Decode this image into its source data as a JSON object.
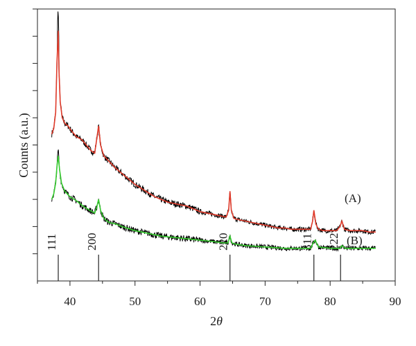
{
  "chart_data": {
    "type": "line",
    "xlabel_main": "2",
    "xlabel_theta": "θ",
    "ylabel": "Counts (a.u.)",
    "xlim": [
      35,
      90
    ],
    "x_ticks": [
      40,
      50,
      60,
      70,
      80,
      90
    ],
    "ylim": [
      0,
      100
    ],
    "y_ticks": [
      10,
      20,
      30,
      40,
      50,
      60,
      70,
      80,
      90,
      100
    ],
    "y_ticks_labeled": false,
    "colors": {
      "raw": "#000000",
      "fit_A": "#e03a2a",
      "fit_B": "#35cc2e"
    },
    "series": [
      {
        "name": "(A)",
        "x": [
          37.2,
          37.5,
          37.8,
          38.0,
          38.2,
          38.3,
          38.5,
          38.8,
          39.2,
          39.7,
          40.3,
          41.0,
          41.8,
          42.5,
          43.2,
          43.8,
          44.1,
          44.4,
          44.7,
          45.2,
          46.0,
          47.0,
          48.0,
          49.0,
          50.0,
          51.0,
          52.0,
          53.0,
          54.0,
          55.0,
          56.0,
          57.0,
          58.0,
          59.0,
          60.0,
          61.0,
          62.0,
          63.0,
          64.0,
          64.4,
          64.6,
          64.8,
          65.2,
          66.0,
          67.0,
          68.0,
          69.0,
          70.0,
          71.0,
          72.0,
          73.0,
          74.0,
          75.0,
          76.0,
          77.0,
          77.3,
          77.5,
          77.8,
          78.2,
          79.0,
          80.0,
          81.0,
          81.5,
          81.8,
          82.2,
          83.0,
          84.0,
          85.0,
          86.0,
          87.0
        ],
        "y": [
          54,
          56,
          62,
          80,
          92,
          78,
          66,
          60,
          58,
          57,
          55,
          53,
          52,
          50,
          48,
          47,
          52,
          57,
          50,
          46,
          44,
          41.5,
          39.5,
          37.5,
          35.5,
          34,
          32.5,
          31,
          30,
          29,
          28.5,
          28,
          27.5,
          26.5,
          25.5,
          25,
          24.5,
          24,
          23.5,
          26,
          33,
          26,
          23,
          22.5,
          22,
          21.5,
          21,
          20.5,
          20,
          19.5,
          19.5,
          19,
          19,
          19,
          19,
          22,
          26,
          21,
          19,
          18.5,
          18.5,
          18.5,
          20,
          22,
          19,
          18.5,
          18.5,
          18.5,
          18,
          18
        ]
      },
      {
        "name": "(B)",
        "x": [
          37.2,
          37.5,
          37.8,
          38.0,
          38.2,
          38.4,
          38.7,
          39.2,
          40.0,
          41.0,
          42.0,
          43.0,
          43.8,
          44.1,
          44.4,
          44.7,
          45.2,
          46.0,
          47.0,
          48.0,
          50.0,
          52.0,
          54.0,
          56.0,
          58.0,
          60.0,
          62.0,
          63.5,
          64.3,
          64.6,
          64.9,
          65.5,
          67.0,
          70.0,
          73.0,
          75.0,
          77.0,
          77.4,
          77.7,
          78.2,
          80.0,
          81.5,
          81.8,
          82.3,
          84.0,
          87.0
        ],
        "y": [
          30,
          32,
          36,
          42,
          46,
          41,
          36,
          33,
          31,
          29.5,
          27.5,
          26,
          25,
          27,
          30,
          26,
          23,
          21.5,
          21,
          20,
          18.5,
          17.5,
          16.5,
          16,
          15.5,
          15,
          14.5,
          14,
          14,
          16.5,
          14,
          13.5,
          13,
          12.5,
          12,
          12,
          12,
          14,
          15,
          12.5,
          12,
          12,
          13,
          12,
          12,
          12
        ]
      }
    ],
    "reflections": [
      {
        "label": "111",
        "x": 38.2
      },
      {
        "label": "200",
        "x": 44.4
      },
      {
        "label": "220",
        "x": 64.6
      },
      {
        "label": "311",
        "x": 77.5
      },
      {
        "label": "222",
        "x": 81.6
      }
    ]
  }
}
